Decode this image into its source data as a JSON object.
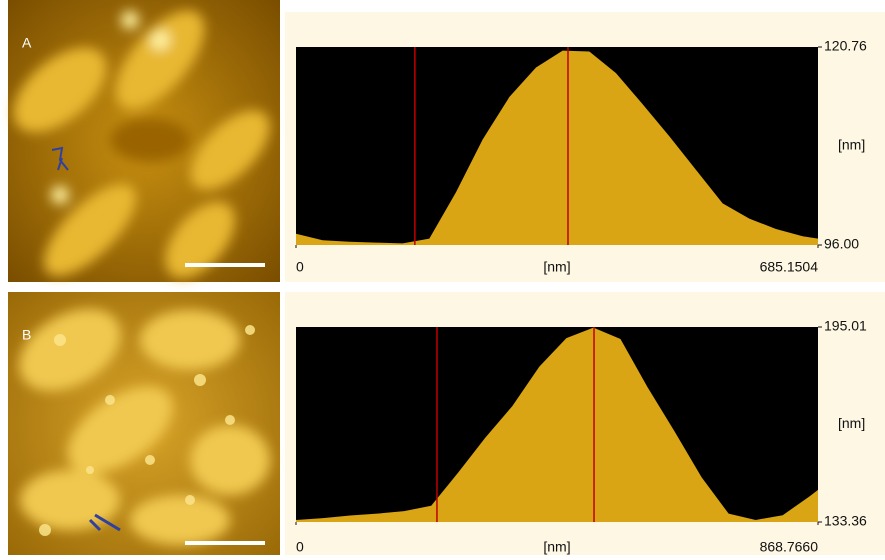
{
  "chart_data": [
    {
      "type": "area",
      "label": "A",
      "xlabel": "[nm]",
      "ylabel": "[nm]",
      "x": [
        0,
        35,
        70,
        105,
        140,
        175,
        210,
        245,
        280,
        315,
        350,
        385,
        420,
        455,
        490,
        525,
        560,
        595,
        630,
        665,
        685.1504
      ],
      "values": [
        97.4,
        96.6,
        96.4,
        96.3,
        96.2,
        96.8,
        102.6,
        109.2,
        114.5,
        118.2,
        120.3,
        120.2,
        117.5,
        113.6,
        109.6,
        105.4,
        101.2,
        99.3,
        98.0,
        97.1,
        96.8
      ],
      "xlim": [
        0,
        685.1504
      ],
      "ylim": [
        96,
        120.76
      ],
      "xticks": [
        0,
        685.1504
      ],
      "yticks": [
        {
          "value": 96,
          "label": "96.00"
        },
        120.76
      ],
      "cursors": [
        156,
        357
      ],
      "color": "#d9a514",
      "cursor_color": "#c00000"
    },
    {
      "type": "area",
      "label": "B",
      "xlabel": "[nm]",
      "ylabel": "[nm]",
      "x": [
        0,
        45,
        90,
        135,
        180,
        225,
        270,
        315,
        360,
        405,
        450,
        495,
        540,
        585,
        630,
        675,
        720,
        765,
        810,
        855,
        868.766
      ],
      "values": [
        134.0,
        134.6,
        135.4,
        136.0,
        136.8,
        138.5,
        149,
        160,
        170,
        182.5,
        191.5,
        194.8,
        191.2,
        176,
        162,
        147.5,
        136,
        134,
        135.5,
        141.5,
        143.5
      ],
      "xlim": [
        0,
        868.766
      ],
      "ylim": [
        133.36,
        195.01
      ],
      "xticks": [
        0,
        {
          "value": 868.766,
          "label": "868.7660"
        }
      ],
      "yticks": [
        133.36,
        195.01
      ],
      "cursors": [
        234.6,
        496
      ],
      "color": "#d9a514",
      "cursor_color": "#c00000"
    }
  ]
}
